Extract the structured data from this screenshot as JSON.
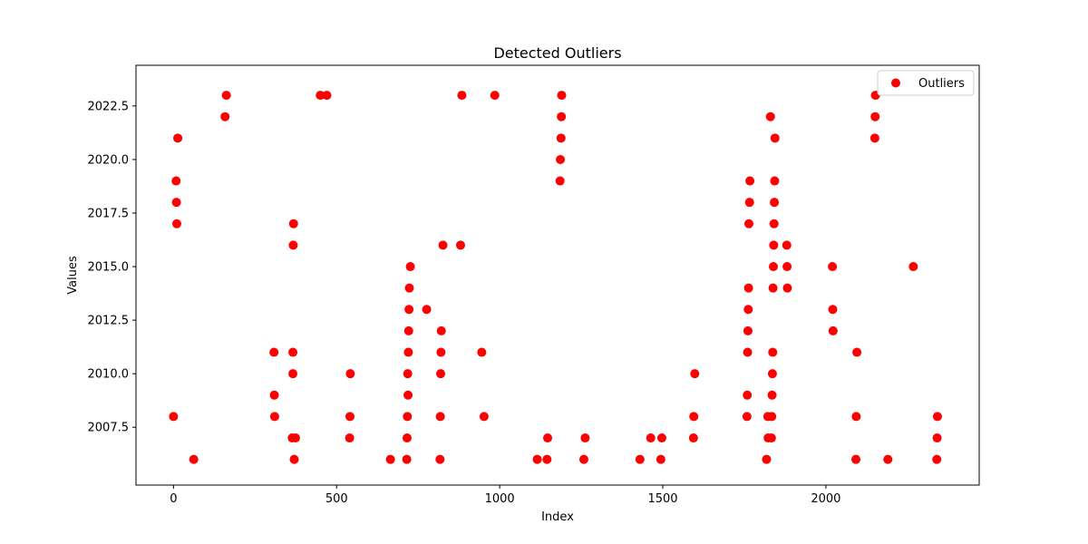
{
  "chart_data": {
    "type": "scatter",
    "title": "Detected Outliers",
    "xlabel": "Index",
    "ylabel": "Values",
    "xlim": [
      -115,
      2470
    ],
    "ylim": [
      2004.8,
      2024.4
    ],
    "xticks": [
      0,
      500,
      1000,
      1500,
      2000
    ],
    "xtick_labels": [
      "0",
      "500",
      "1000",
      "1500",
      "2000"
    ],
    "yticks": [
      2007.5,
      2010.0,
      2012.5,
      2015.0,
      2017.5,
      2020.0,
      2022.5
    ],
    "ytick_labels": [
      "2007.5",
      "2010.0",
      "2012.5",
      "2015.0",
      "2017.5",
      "2020.0",
      "2022.5"
    ],
    "grid": false,
    "legend_position": "top-right",
    "series": [
      {
        "name": "Outliers",
        "color": "#ff0000",
        "points": [
          [
            0,
            2008
          ],
          [
            8,
            2019
          ],
          [
            9,
            2018
          ],
          [
            10,
            2017
          ],
          [
            13,
            2021
          ],
          [
            62,
            2006
          ],
          [
            158,
            2022
          ],
          [
            162,
            2023
          ],
          [
            308,
            2011
          ],
          [
            309,
            2009
          ],
          [
            310,
            2008
          ],
          [
            364,
            2007
          ],
          [
            366,
            2010
          ],
          [
            366,
            2011
          ],
          [
            367,
            2016
          ],
          [
            368,
            2017
          ],
          [
            370,
            2006
          ],
          [
            374,
            2007
          ],
          [
            450,
            2023
          ],
          [
            470,
            2023
          ],
          [
            540,
            2007
          ],
          [
            541,
            2008
          ],
          [
            542,
            2010
          ],
          [
            665,
            2006
          ],
          [
            715,
            2006
          ],
          [
            716,
            2007
          ],
          [
            717,
            2008
          ],
          [
            718,
            2010
          ],
          [
            719,
            2009
          ],
          [
            720,
            2011
          ],
          [
            721,
            2012
          ],
          [
            722,
            2013
          ],
          [
            723,
            2014
          ],
          [
            726,
            2015
          ],
          [
            776,
            2013
          ],
          [
            817,
            2006
          ],
          [
            818,
            2008
          ],
          [
            819,
            2010
          ],
          [
            820,
            2011
          ],
          [
            821,
            2012
          ],
          [
            826,
            2016
          ],
          [
            880,
            2016
          ],
          [
            884,
            2023
          ],
          [
            945,
            2011
          ],
          [
            952,
            2008
          ],
          [
            985,
            2023
          ],
          [
            1115,
            2006
          ],
          [
            1145,
            2006
          ],
          [
            1147,
            2007
          ],
          [
            1185,
            2019
          ],
          [
            1186,
            2020
          ],
          [
            1188,
            2021
          ],
          [
            1189,
            2022
          ],
          [
            1190,
            2023
          ],
          [
            1258,
            2006
          ],
          [
            1262,
            2007
          ],
          [
            1430,
            2006
          ],
          [
            1463,
            2007
          ],
          [
            1494,
            2006
          ],
          [
            1497,
            2007
          ],
          [
            1594,
            2007
          ],
          [
            1595,
            2008
          ],
          [
            1598,
            2010
          ],
          [
            1758,
            2008
          ],
          [
            1759,
            2009
          ],
          [
            1760,
            2011
          ],
          [
            1761,
            2012
          ],
          [
            1762,
            2013
          ],
          [
            1763,
            2014
          ],
          [
            1764,
            2017
          ],
          [
            1766,
            2018
          ],
          [
            1767,
            2019
          ],
          [
            1818,
            2006
          ],
          [
            1822,
            2008
          ],
          [
            1823,
            2007
          ],
          [
            1830,
            2022
          ],
          [
            1833,
            2007
          ],
          [
            1834,
            2008
          ],
          [
            1835,
            2009
          ],
          [
            1836,
            2010
          ],
          [
            1837,
            2011
          ],
          [
            1838,
            2014
          ],
          [
            1839,
            2015
          ],
          [
            1840,
            2016
          ],
          [
            1841,
            2017
          ],
          [
            1842,
            2018
          ],
          [
            1843,
            2019
          ],
          [
            1844,
            2021
          ],
          [
            1880,
            2016
          ],
          [
            1881,
            2015
          ],
          [
            1882,
            2014
          ],
          [
            2020,
            2015
          ],
          [
            2021,
            2013
          ],
          [
            2022,
            2012
          ],
          [
            2092,
            2006
          ],
          [
            2093,
            2008
          ],
          [
            2095,
            2011
          ],
          [
            2150,
            2021
          ],
          [
            2151,
            2022
          ],
          [
            2152,
            2023
          ],
          [
            2190,
            2006
          ],
          [
            2268,
            2015
          ],
          [
            2340,
            2006
          ],
          [
            2341,
            2007
          ],
          [
            2342,
            2008
          ]
        ]
      }
    ]
  }
}
